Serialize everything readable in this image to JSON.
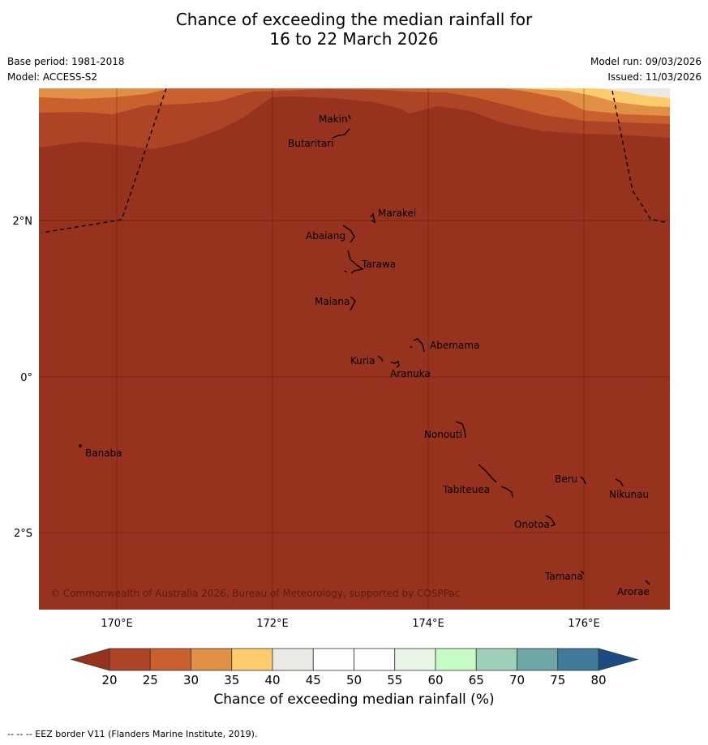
{
  "title": {
    "line1": "Chance of exceeding the median rainfall for",
    "line2": "16 to 22 March 2026"
  },
  "meta": {
    "base_period": "Base period: 1981-2018",
    "model": "Model: ACCESS-S2",
    "model_run": "Model run: 09/03/2026",
    "issued": "Issued: 11/03/2026"
  },
  "map": {
    "lon_labels": [
      "170°E",
      "172°E",
      "174°E",
      "176°E"
    ],
    "lat_labels": [
      "2°N",
      "0°",
      "2°S"
    ],
    "copyright": "© Commonwealth of Australia 2026, Bureau of Meteorology, supported by COSPPac",
    "islands": [
      "Makin",
      "Butaritari",
      "Marakei",
      "Abaiang",
      "Tarawa",
      "Maiana",
      "Abemama",
      "Kuria",
      "Aranuka",
      "Nonouti",
      "Banaba",
      "Beru",
      "Nikunau",
      "Tabiteuea",
      "Onotoa",
      "Tamana",
      "Arorae"
    ],
    "background_color": "#97321e"
  },
  "colorbar": {
    "ticks": [
      "20",
      "25",
      "30",
      "35",
      "40",
      "45",
      "50",
      "55",
      "60",
      "65",
      "70",
      "75",
      "80"
    ],
    "colors": [
      "#ad4426",
      "#c9602d",
      "#e09145",
      "#fbcb6c",
      "#ebe9e6",
      "#ffffff",
      "#ffffff",
      "#e9f5e7",
      "#c6fbc6",
      "#9ed0b9",
      "#6fa7a6",
      "#417a9a"
    ],
    "low_color": "#97321e",
    "high_color": "#194c82",
    "label": "Chance of exceeding median rainfall (%)"
  },
  "footnote": "--  --  -- EEZ border V11 (Flanders Marine Institute, 2019)."
}
